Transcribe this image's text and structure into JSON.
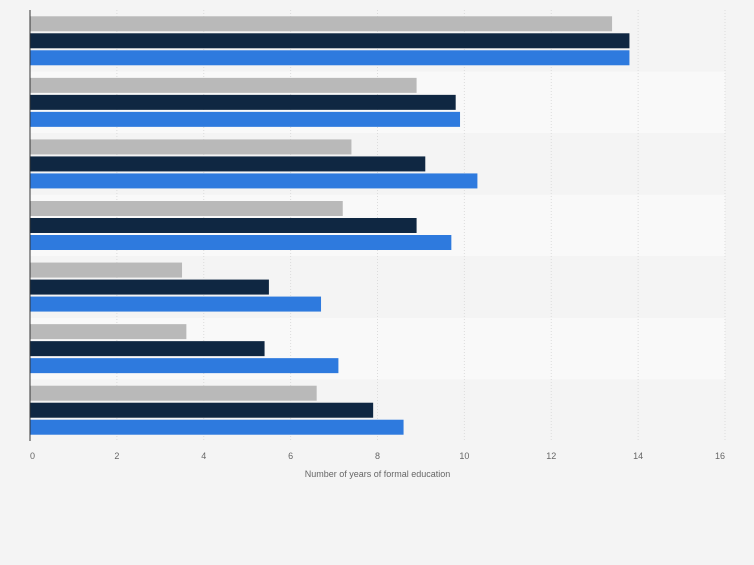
{
  "chart_data": {
    "type": "bar",
    "orientation": "horizontal",
    "categories": [
      "",
      "",
      "",
      "",
      "",
      "",
      ""
    ],
    "series": [
      {
        "color": "#b9b9b9",
        "values": [
          13.4,
          8.9,
          7.4,
          7.2,
          3.5,
          3.6,
          6.6
        ]
      },
      {
        "color": "#0f2742",
        "values": [
          13.8,
          9.8,
          9.1,
          8.9,
          5.5,
          5.4,
          7.9
        ]
      },
      {
        "color": "#2e7ade",
        "values": [
          13.8,
          9.9,
          10.3,
          9.7,
          6.7,
          7.1,
          8.6
        ]
      }
    ],
    "xlabel": "Number of years of formal education",
    "xlim": [
      0,
      16
    ],
    "xticks": [
      0,
      2,
      4,
      6,
      8,
      10,
      12,
      14,
      16
    ],
    "grid": true,
    "legend": "none"
  }
}
